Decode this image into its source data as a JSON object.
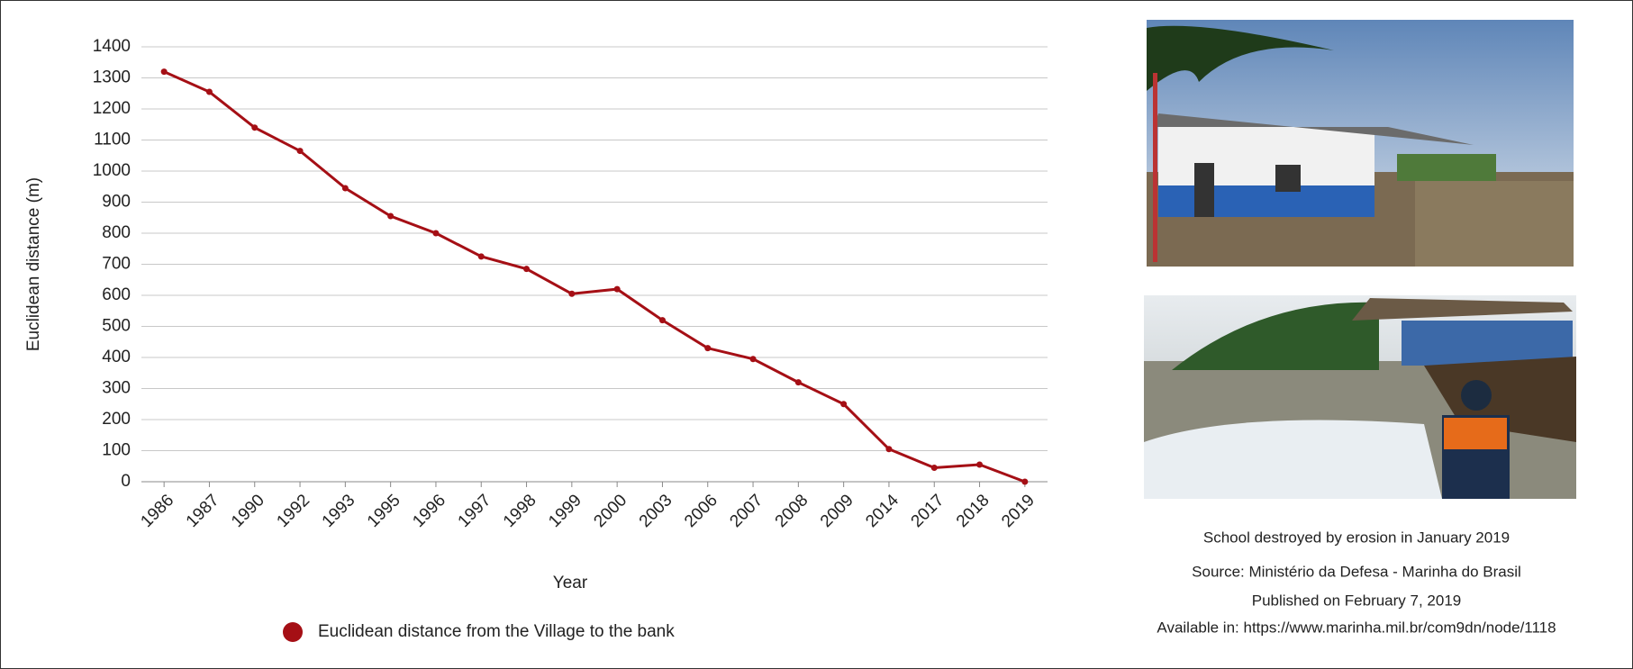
{
  "chart_data": {
    "type": "line",
    "x_label": "Year",
    "y_label": "Euclidean distance (m)",
    "categories": [
      "1986",
      "1987",
      "1990",
      "1992",
      "1993",
      "1995",
      "1996",
      "1997",
      "1998",
      "1999",
      "2000",
      "2003",
      "2006",
      "2007",
      "2008",
      "2009",
      "2014",
      "2017",
      "2018",
      "2019"
    ],
    "series": [
      {
        "name": "Euclidean distance from the Village to the bank",
        "color": "#a50f15",
        "values": [
          1320,
          1255,
          1140,
          1065,
          945,
          855,
          800,
          725,
          685,
          605,
          620,
          520,
          430,
          395,
          320,
          250,
          105,
          45,
          55,
          0
        ]
      }
    ],
    "ylim": [
      0,
      1400
    ],
    "yticks": [
      0,
      100,
      200,
      300,
      400,
      500,
      600,
      700,
      800,
      900,
      1000,
      1100,
      1200,
      1300,
      1400
    ],
    "grid": true,
    "legend": "bottom"
  },
  "photo_caption": [
    "School destroyed by erosion in January 2019",
    "Source: Ministério da Defesa - Marinha do Brasil",
    "Published on February 7, 2019",
    "Available in: https://www.marinha.mil.br/com9dn/node/1118"
  ]
}
